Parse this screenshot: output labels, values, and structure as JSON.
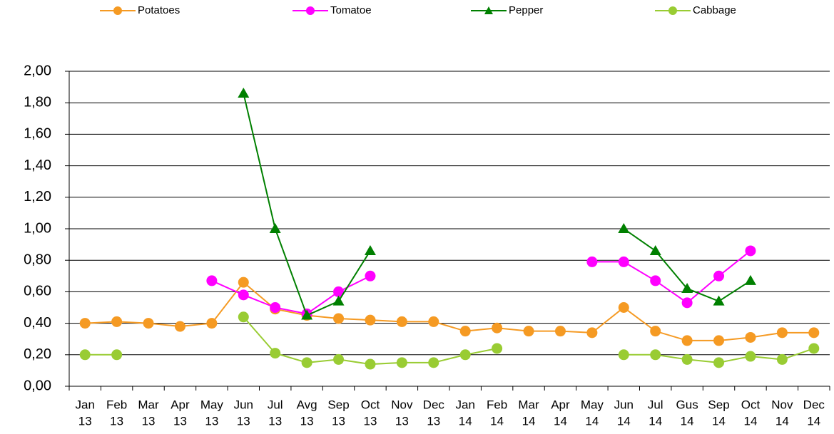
{
  "chart_data": {
    "type": "line",
    "categories": [
      [
        "Jan",
        "13"
      ],
      [
        "Feb",
        "13"
      ],
      [
        "Mar",
        "13"
      ],
      [
        "Apr",
        "13"
      ],
      [
        "May",
        "13"
      ],
      [
        "Jun",
        "13"
      ],
      [
        "Jul",
        "13"
      ],
      [
        "Avg",
        "13"
      ],
      [
        "Sep",
        "13"
      ],
      [
        "Oct",
        "13"
      ],
      [
        "Nov",
        "13"
      ],
      [
        "Dec",
        "13"
      ],
      [
        "Jan",
        "14"
      ],
      [
        "Feb",
        "14"
      ],
      [
        "Mar",
        "14"
      ],
      [
        "Apr",
        "14"
      ],
      [
        "May",
        "14"
      ],
      [
        "Jun",
        "14"
      ],
      [
        "Jul",
        "14"
      ],
      [
        "Gus",
        "14"
      ],
      [
        "Sep",
        "14"
      ],
      [
        "Oct",
        "14"
      ],
      [
        "Nov",
        "14"
      ],
      [
        "Dec",
        "14"
      ]
    ],
    "series": [
      {
        "name": "Potatoes",
        "color": "#f59a23",
        "marker": "circle",
        "values": [
          0.4,
          0.41,
          0.4,
          0.38,
          0.4,
          0.66,
          0.49,
          0.45,
          0.43,
          0.42,
          0.41,
          0.41,
          0.35,
          0.37,
          0.35,
          0.35,
          0.34,
          0.5,
          0.35,
          0.29,
          0.29,
          0.31,
          0.34,
          0.34
        ]
      },
      {
        "name": "Tomatoe",
        "color": "#ff00ff",
        "marker": "circle",
        "values": [
          null,
          null,
          null,
          null,
          0.67,
          0.58,
          0.5,
          0.46,
          0.6,
          0.7,
          null,
          null,
          null,
          null,
          null,
          null,
          0.79,
          0.79,
          0.67,
          0.53,
          0.7,
          0.86,
          null,
          null
        ]
      },
      {
        "name": "Pepper",
        "color": "#008000",
        "marker": "triangle",
        "values": [
          null,
          null,
          null,
          null,
          null,
          1.86,
          1.0,
          0.45,
          0.54,
          0.86,
          null,
          null,
          null,
          null,
          null,
          null,
          null,
          1.0,
          0.86,
          0.62,
          0.54,
          0.67,
          null,
          null
        ]
      },
      {
        "name": "Cabbage",
        "color": "#99cc33",
        "marker": "circle",
        "values": [
          0.2,
          0.2,
          null,
          null,
          null,
          0.44,
          0.21,
          0.15,
          0.17,
          0.14,
          0.15,
          0.15,
          0.2,
          0.24,
          null,
          null,
          null,
          0.2,
          0.2,
          0.17,
          0.15,
          0.19,
          0.17,
          0.24
        ]
      }
    ],
    "ylim": [
      0,
      2
    ],
    "yticks": [
      {
        "value": 0,
        "label": "0,00"
      },
      {
        "value": 0.2,
        "label": "0,20"
      },
      {
        "value": 0.4,
        "label": "0,40"
      },
      {
        "value": 0.6,
        "label": "0,60"
      },
      {
        "value": 0.8,
        "label": "0,80"
      },
      {
        "value": 1,
        "label": "1,00"
      },
      {
        "value": 1.2,
        "label": "1,20"
      },
      {
        "value": 1.4,
        "label": "1,40"
      },
      {
        "value": 1.6,
        "label": "1,60"
      },
      {
        "value": 1.8,
        "label": "1,80"
      },
      {
        "value": 2,
        "label": "2,00"
      }
    ],
    "grid": true,
    "legend": "top"
  }
}
